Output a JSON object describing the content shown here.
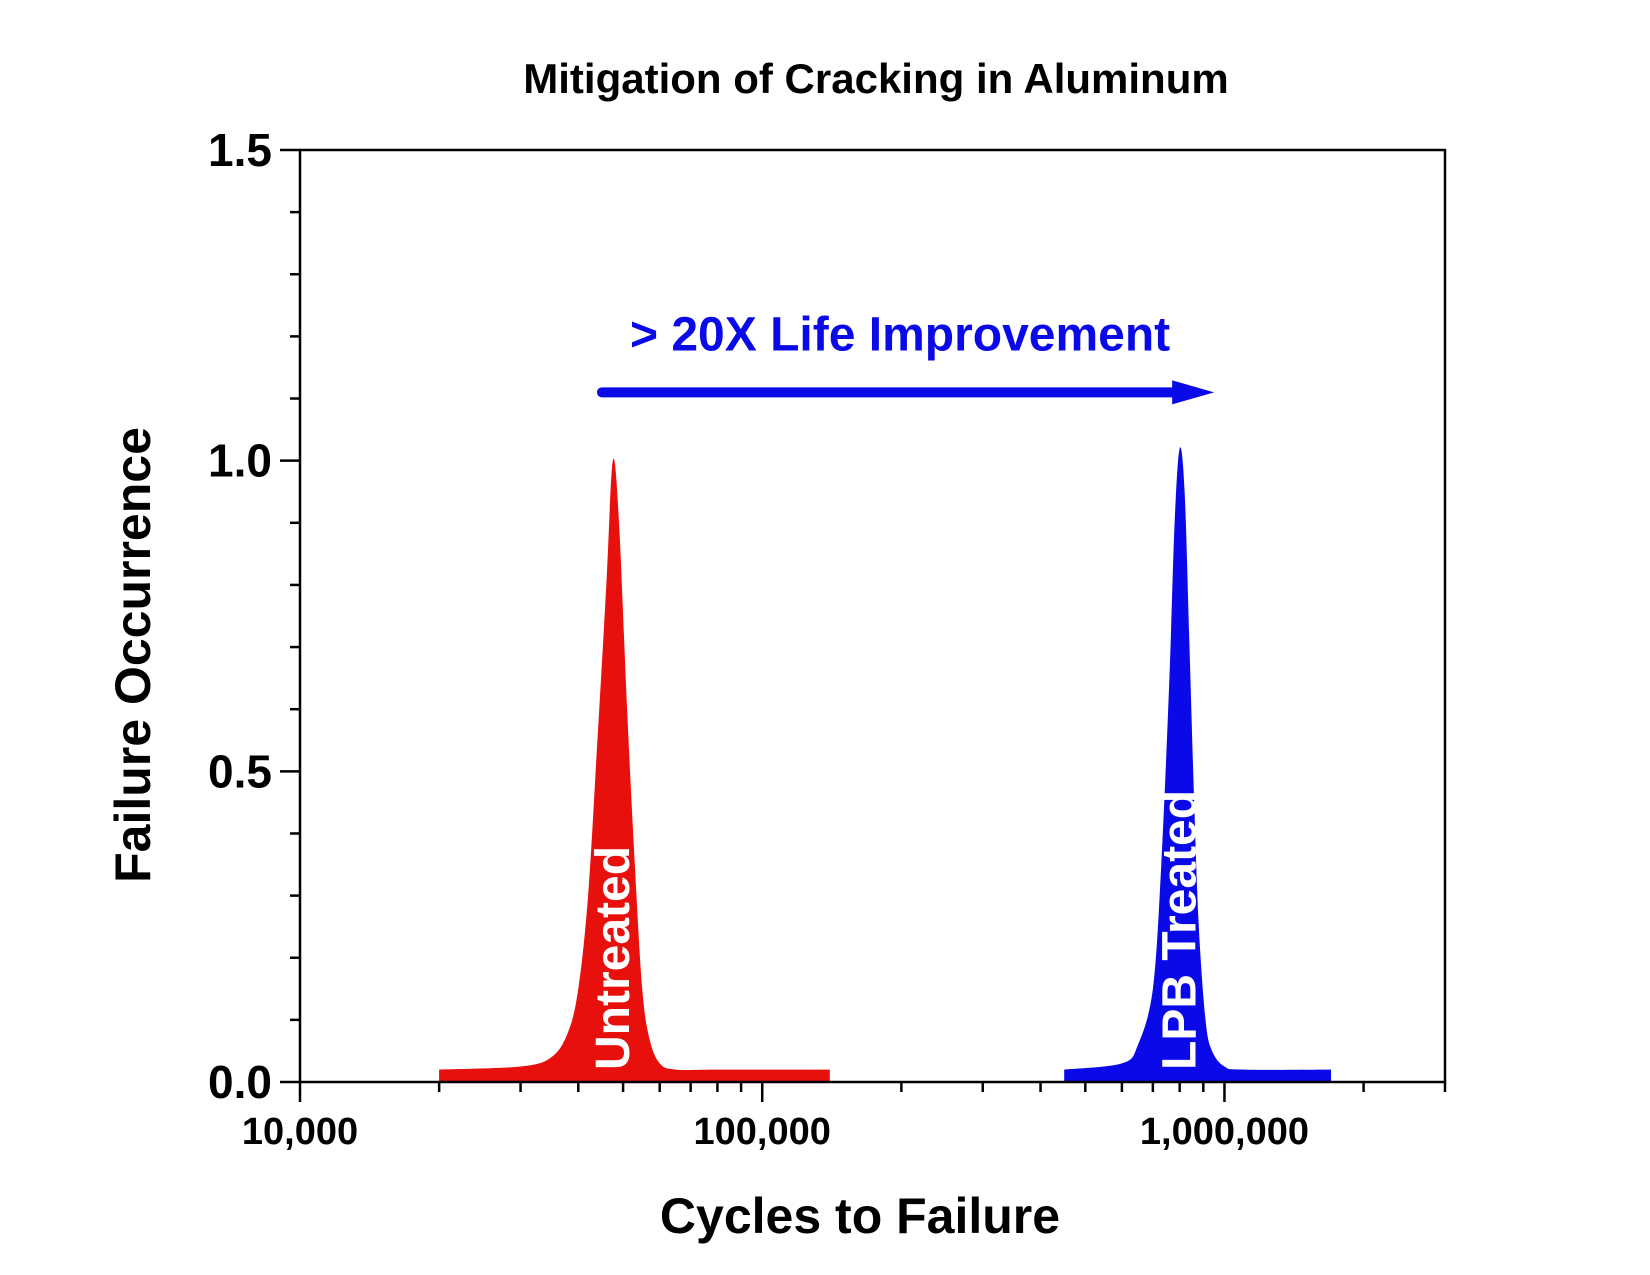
{
  "chart_data": {
    "type": "area",
    "title": "Mitigation of Cracking in Aluminum",
    "xlabel": "Cycles to Failure",
    "ylabel": "Failure Occurrence",
    "x_scale": "log",
    "xlim": [
      10000,
      3000000
    ],
    "ylim": [
      0,
      1.5
    ],
    "x_ticks": [
      {
        "value": 10000,
        "label": "10,000"
      },
      {
        "value": 100000,
        "label": "100,000"
      },
      {
        "value": 1000000,
        "label": "1,000,000"
      }
    ],
    "y_ticks": [
      {
        "value": 0.0,
        "label": "0.0"
      },
      {
        "value": 0.5,
        "label": "0.5"
      },
      {
        "value": 1.0,
        "label": "1.0"
      },
      {
        "value": 1.5,
        "label": "1.5"
      }
    ],
    "grid": false,
    "series": [
      {
        "name": "Untreated",
        "color": "#e8100c",
        "x": [
          20000,
          30000,
          35000,
          38000,
          40000,
          42000,
          44000,
          46000,
          47500,
          49000,
          51000,
          53000,
          55000,
          57000,
          60000,
          65000,
          80000,
          140000
        ],
        "y": [
          0.02,
          0.025,
          0.04,
          0.08,
          0.15,
          0.3,
          0.55,
          0.8,
          1.0,
          0.9,
          0.6,
          0.35,
          0.15,
          0.07,
          0.03,
          0.02,
          0.02,
          0.02
        ]
      },
      {
        "name": "LPB Treated",
        "color": "#0a0ae8",
        "x": [
          450000,
          600000,
          650000,
          700000,
          730000,
          760000,
          780000,
          800000,
          820000,
          840000,
          860000,
          880000,
          910000,
          940000,
          1000000,
          1100000,
          1700000
        ],
        "y": [
          0.02,
          0.03,
          0.06,
          0.15,
          0.35,
          0.65,
          0.9,
          1.02,
          0.95,
          0.7,
          0.45,
          0.25,
          0.1,
          0.05,
          0.025,
          0.02,
          0.02
        ]
      }
    ],
    "annotations": [
      {
        "text": "> 20X Life Improvement",
        "color": "#0a0ae8",
        "type": "arrow",
        "from_x": 45000,
        "to_x": 950000,
        "y": 1.11
      }
    ]
  }
}
